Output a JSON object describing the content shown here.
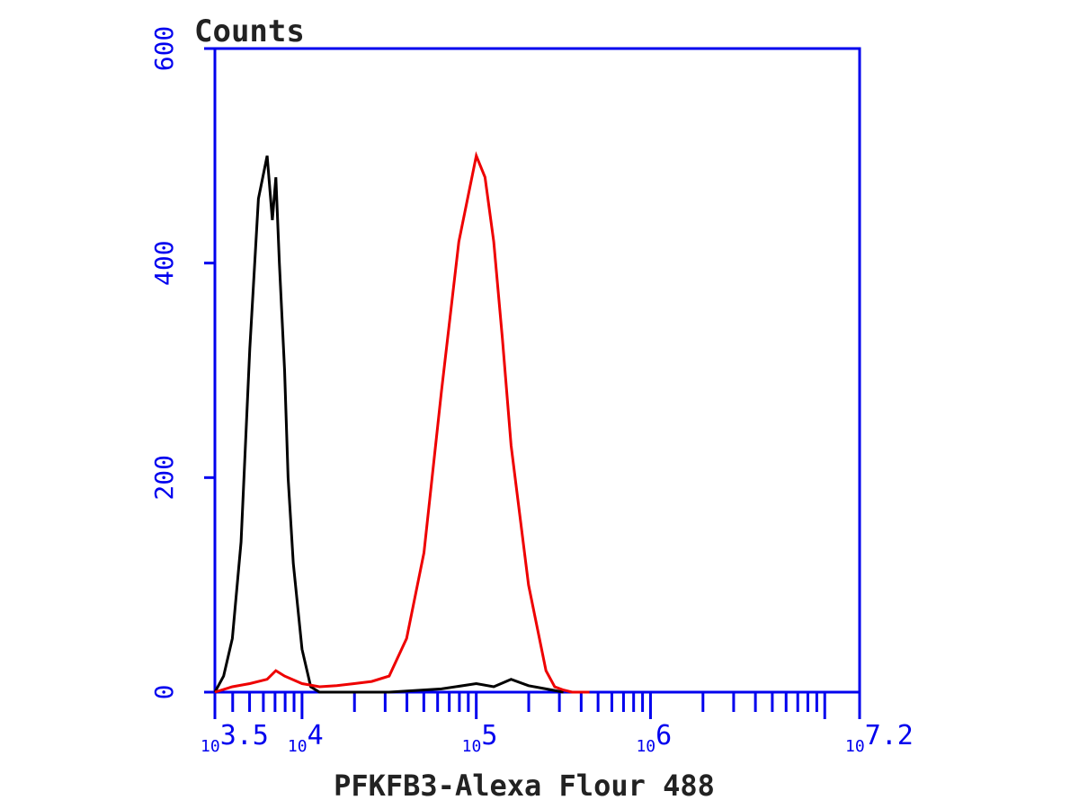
{
  "chart_data": {
    "type": "line",
    "title": "",
    "xlabel": "PFKFB3-Alexa Flour 488",
    "ylabel": "Counts",
    "x_scale": "log10",
    "xlim_log10": [
      3.5,
      7.2
    ],
    "ylim": [
      0,
      600
    ],
    "grid": false,
    "colors": {
      "axes": "#0000ee",
      "text": "#222222",
      "control": "#000000",
      "sample": "#ee0000"
    },
    "x_tick_labels": [
      {
        "base": "10",
        "exp": "3.5"
      },
      {
        "base": "10",
        "exp": "4"
      },
      {
        "base": "10",
        "exp": "5"
      },
      {
        "base": "10",
        "exp": "6"
      },
      {
        "base": "10",
        "exp": "7.2"
      }
    ],
    "y_ticks": [
      0,
      200,
      400,
      600
    ],
    "series": [
      {
        "color": "#000000",
        "log10_x": [
          3.5,
          3.55,
          3.6,
          3.65,
          3.7,
          3.75,
          3.8,
          3.83,
          3.85,
          3.87,
          3.9,
          3.92,
          3.95,
          4.0,
          4.05,
          4.1,
          4.15,
          4.2,
          4.3,
          4.5,
          4.8,
          5.0,
          5.1,
          5.2,
          5.3,
          5.4,
          5.5
        ],
        "y": [
          0,
          15,
          50,
          140,
          320,
          460,
          500,
          440,
          480,
          400,
          300,
          200,
          120,
          40,
          5,
          0,
          0,
          0,
          0,
          0,
          3,
          8,
          5,
          12,
          6,
          3,
          0
        ]
      },
      {
        "color": "#ee0000",
        "log10_x": [
          3.5,
          3.6,
          3.7,
          3.8,
          3.85,
          3.9,
          4.0,
          4.1,
          4.2,
          4.3,
          4.4,
          4.5,
          4.6,
          4.7,
          4.8,
          4.9,
          4.95,
          5.0,
          5.05,
          5.1,
          5.15,
          5.2,
          5.3,
          5.4,
          5.45,
          5.5,
          5.55,
          5.65
        ],
        "y": [
          0,
          5,
          8,
          12,
          20,
          15,
          8,
          5,
          6,
          8,
          10,
          15,
          50,
          130,
          280,
          420,
          460,
          500,
          480,
          420,
          330,
          230,
          100,
          20,
          5,
          2,
          0,
          0
        ]
      }
    ]
  }
}
